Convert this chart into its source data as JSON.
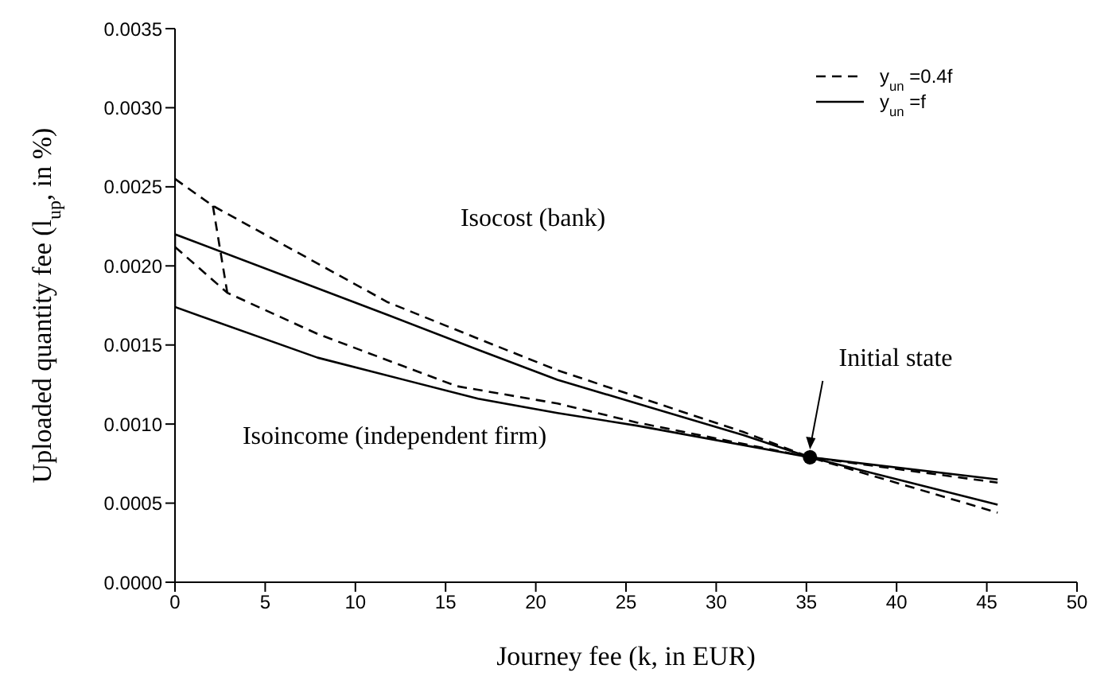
{
  "chart_data": {
    "type": "line",
    "xlabel": "Journey fee (k, in EUR)",
    "ylabel": "Uploaded quantity fee (l$_{up}$, in %)",
    "xlim": [
      0,
      50
    ],
    "xticks": [
      0,
      5,
      10,
      15,
      20,
      25,
      30,
      35,
      40,
      45,
      50
    ],
    "ylim": [
      0,
      0.0035
    ],
    "yticks": [
      {
        "value": 0,
        "label": "0.0000"
      },
      {
        "value": 0.0005,
        "label": "0.0005"
      },
      {
        "value": 0.001,
        "label": "0.0010"
      },
      {
        "value": 0.0015,
        "label": "0.0015"
      },
      {
        "value": 0.002,
        "label": "0.0020"
      },
      {
        "value": 0.0025,
        "label": "0.0025"
      },
      {
        "value": 0.003,
        "label": "0.0030"
      },
      {
        "value": 0.0035,
        "label": "0.0035"
      }
    ],
    "legend": "top right",
    "marker": "none",
    "series": [
      {
        "name": "y$_{un}$ =0.4f",
        "color": "#000000",
        "line_style": "dashed",
        "x": [
          0,
          2.1,
          11.8,
          16.8,
          21.2,
          31.5,
          35.2,
          45.6
        ],
        "values": [
          0.00255,
          0.00238,
          0.00177,
          0.00154,
          0.00134,
          0.00095,
          0.00079,
          0.00044
        ]
      },
      {
        "color": "#000000",
        "line_style": "dashed",
        "x": [
          0,
          2.9,
          7.9,
          15.6,
          21.2,
          25.6,
          35.2,
          45.6
        ],
        "values": [
          0.00212,
          0.00183,
          0.00157,
          0.00124,
          0.00113,
          0.00101,
          0.00079,
          0.00063
        ]
      },
      {
        "color": "#000000",
        "line_style": "dashed",
        "x": [
          2.1,
          2.9
        ],
        "values": [
          0.00238,
          0.00183
        ]
      },
      {
        "name": "y$_{un}$ =f",
        "color": "#000000",
        "line_style": "solid",
        "x": [
          0,
          11.8,
          16.8,
          21.2,
          31.5,
          35.2,
          45.6
        ],
        "values": [
          0.0022,
          0.00169,
          0.00147,
          0.00128,
          0.00093,
          0.00079,
          0.00049
        ]
      },
      {
        "color": "#000000",
        "line_style": "solid",
        "x": [
          0,
          7.9,
          16.8,
          21.2,
          25.6,
          35.2,
          45.6
        ],
        "values": [
          0.00174,
          0.00142,
          0.00116,
          0.00107,
          0.00099,
          0.00079,
          0.00065
        ]
      },
      {
        "color": "#000000",
        "line_style": "solid",
        "x": [
          0,
          0
        ],
        "values": [
          0.00174,
          0.0022
        ]
      },
      {
        "type": "scatter",
        "color": "#000000",
        "marker": "circle",
        "x": [
          35.2
        ],
        "values": [
          0.00079
        ]
      }
    ],
    "annotations": [
      "Isocost (bank)",
      "Isoincome (independent firm)",
      "Initial state"
    ]
  }
}
